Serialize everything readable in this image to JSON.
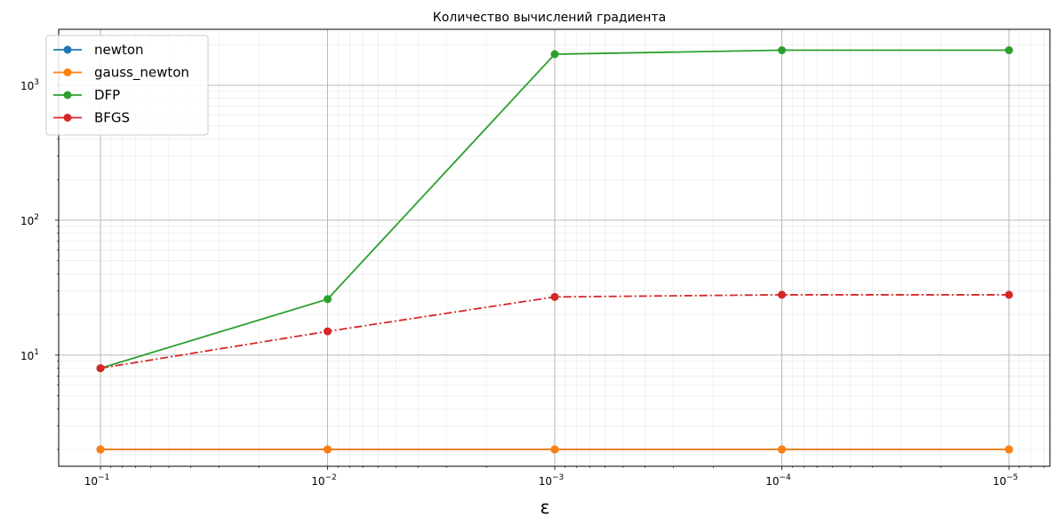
{
  "chart_data": {
    "type": "line",
    "title": "Количество вычислений градиента",
    "xlabel": "ε",
    "ylabel": "",
    "x": [
      0.1,
      0.01,
      0.001,
      0.0001,
      1e-05
    ],
    "x_scale": "log",
    "x_inverted": true,
    "x_ticks": [
      {
        "value": 0.1,
        "label": "10",
        "exp": "−1"
      },
      {
        "value": 0.01,
        "label": "10",
        "exp": "−2"
      },
      {
        "value": 0.001,
        "label": "10",
        "exp": "−3"
      },
      {
        "value": 0.0001,
        "label": "10",
        "exp": "−4"
      },
      {
        "value": 1e-05,
        "label": "10",
        "exp": "−5"
      }
    ],
    "y_scale": "log",
    "ylim": [
      1.5,
      2600
    ],
    "y_ticks": [
      {
        "value": 10,
        "label": "10",
        "exp": "1"
      },
      {
        "value": 100,
        "label": "10",
        "exp": "2"
      },
      {
        "value": 1000,
        "label": "10",
        "exp": "3"
      }
    ],
    "grid": true,
    "minor_grid": true,
    "legend_position": "top-left",
    "series": [
      {
        "name": "newton",
        "values": [
          2,
          2,
          2,
          2,
          2
        ],
        "color": "#1f77b4",
        "linestyle": "solid"
      },
      {
        "name": "gauss_newton",
        "values": [
          2,
          2,
          2,
          2,
          2
        ],
        "color": "#ff7f0e",
        "linestyle": "solid"
      },
      {
        "name": "DFP",
        "values": [
          8,
          26,
          1700,
          1820,
          1820
        ],
        "color": "#2ca02c",
        "linestyle": "solid"
      },
      {
        "name": "BFGS",
        "values": [
          8,
          15,
          27,
          28,
          28
        ],
        "color": "#d62728",
        "linestyle": "dashdot"
      }
    ]
  }
}
